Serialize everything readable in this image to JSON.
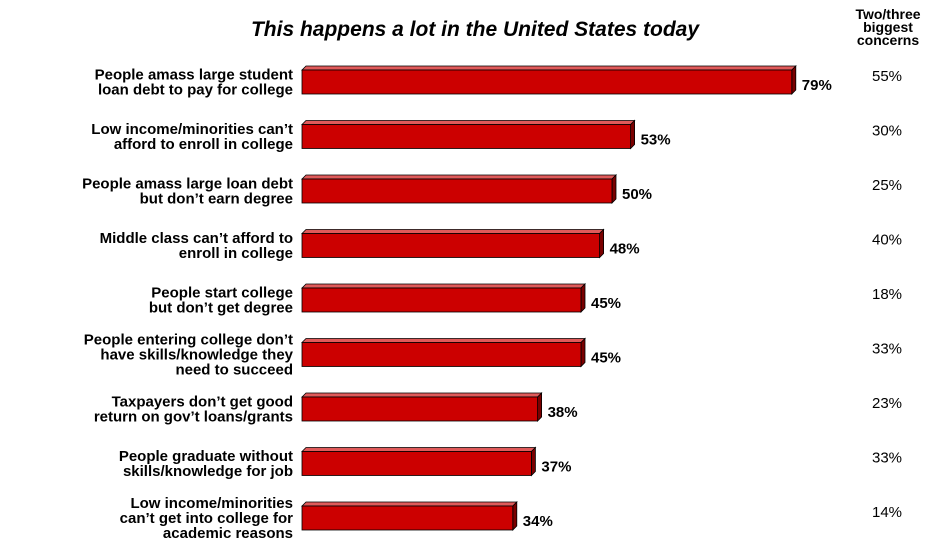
{
  "chart_data": {
    "type": "bar",
    "orientation": "horizontal",
    "title": "This happens a lot in the United States today",
    "categories": [
      [
        "People amass large student",
        "loan debt to pay for college"
      ],
      [
        "Low income/minorities can’t",
        "afford to enroll in college"
      ],
      [
        "People amass large loan debt",
        "but don’t earn degree"
      ],
      [
        "Middle class can’t afford to",
        "enroll in college"
      ],
      [
        "People start college",
        "but don’t get degree"
      ],
      [
        "People entering college don’t",
        "have skills/knowledge they",
        "need to succeed"
      ],
      [
        "Taxpayers don’t get good",
        "return on gov’t loans/grants"
      ],
      [
        "People graduate without",
        "skills/knowledge for job"
      ],
      [
        "Low income/minorities",
        "can’t get into college for",
        "academic reasons"
      ]
    ],
    "values": [
      79,
      53,
      50,
      48,
      45,
      45,
      38,
      37,
      34
    ],
    "value_labels": [
      "79%",
      "53%",
      "50%",
      "48%",
      "45%",
      "45%",
      "38%",
      "37%",
      "34%"
    ],
    "xlim": [
      0,
      100
    ],
    "bar_color": "#cc0000",
    "bar_side_color": "#7a0000",
    "concerns_header": [
      "Two/three",
      "biggest",
      "concerns"
    ],
    "concerns": [
      "55%",
      "30%",
      "25%",
      "40%",
      "18%",
      "33%",
      "23%",
      "33%",
      "14%"
    ]
  }
}
